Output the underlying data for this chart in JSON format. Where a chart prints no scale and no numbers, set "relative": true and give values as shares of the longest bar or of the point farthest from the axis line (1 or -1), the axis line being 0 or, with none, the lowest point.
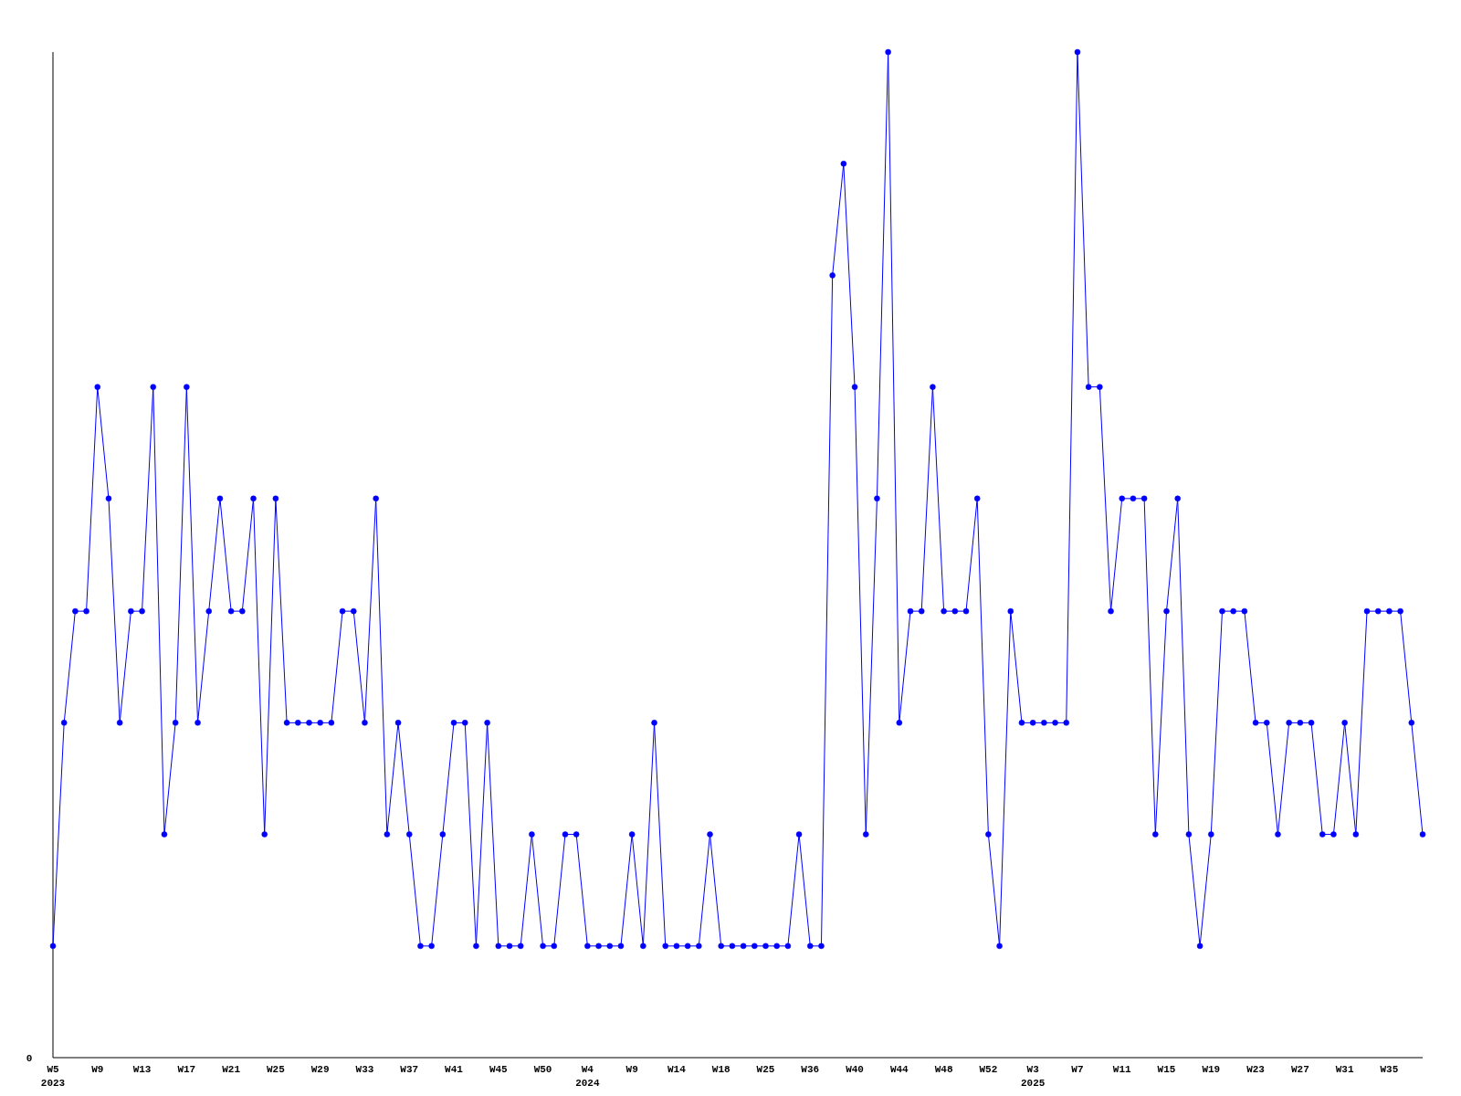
{
  "chart_data": {
    "type": "line",
    "relative": true,
    "marker": "circle",
    "annotations": [
      "0"
    ],
    "categories": [
      "W5\n2023",
      null,
      null,
      null,
      "W9",
      null,
      null,
      null,
      "W13",
      null,
      null,
      null,
      "W17",
      null,
      null,
      null,
      "W21",
      null,
      null,
      null,
      "W25",
      null,
      null,
      null,
      "W29",
      null,
      null,
      null,
      "W33",
      null,
      null,
      null,
      "W37",
      null,
      null,
      null,
      "W41",
      null,
      null,
      null,
      "W45",
      null,
      null,
      null,
      "W50",
      null,
      null,
      null,
      "W4\n2024",
      null,
      null,
      null,
      "W9",
      null,
      null,
      null,
      "W14",
      null,
      null,
      null,
      "W18",
      null,
      null,
      null,
      "W25",
      null,
      null,
      null,
      "W36",
      null,
      null,
      null,
      "W40",
      null,
      null,
      null,
      "W44",
      null,
      null,
      null,
      "W48",
      null,
      null,
      null,
      "W52",
      null,
      null,
      null,
      "W3\n2025",
      null,
      null,
      null,
      "W7",
      null,
      null,
      null,
      "W11",
      null,
      null,
      null,
      "W15",
      null,
      null,
      null,
      "W19",
      null,
      null,
      null,
      "W23",
      null,
      null,
      null,
      "W27",
      null,
      null,
      null,
      "W31",
      null,
      null,
      null,
      "W35",
      null,
      null,
      null
    ],
    "series": [
      {
        "color": "#0000ff",
        "values": [
          0.111,
          0.333,
          0.444,
          0.444,
          0.667,
          0.556,
          0.333,
          0.444,
          0.444,
          0.667,
          0.222,
          0.333,
          0.667,
          0.333,
          0.444,
          0.556,
          0.444,
          0.444,
          0.556,
          0.222,
          0.556,
          0.333,
          0.333,
          0.333,
          0.333,
          0.333,
          0.444,
          0.444,
          0.333,
          0.556,
          0.222,
          0.333,
          0.222,
          0.111,
          0.111,
          0.222,
          0.333,
          0.333,
          0.111,
          0.333,
          0.111,
          0.111,
          0.111,
          0.222,
          0.111,
          0.111,
          0.222,
          0.222,
          0.111,
          0.111,
          0.111,
          0.111,
          0.222,
          0.111,
          0.333,
          0.111,
          0.111,
          0.111,
          0.111,
          0.222,
          0.111,
          0.111,
          0.111,
          0.111,
          0.111,
          0.111,
          0.111,
          0.222,
          0.111,
          0.111,
          0.778,
          0.889,
          0.667,
          0.222,
          0.556,
          1,
          0.333,
          0.444,
          0.444,
          0.667,
          0.444,
          0.444,
          0.444,
          0.556,
          0.222,
          0.111,
          0.444,
          0.333,
          0.333,
          0.333,
          0.333,
          0.333,
          1,
          0.667,
          0.667,
          0.444,
          0.556,
          0.556,
          0.556,
          0.222,
          0.444,
          0.556,
          0.222,
          0.111,
          0.222,
          0.444,
          0.444,
          0.444,
          0.333,
          0.333,
          0.222,
          0.333,
          0.333,
          0.333,
          0.222,
          0.222,
          0.333,
          0.222,
          0.444,
          0.444,
          0.444,
          0.444,
          0.333,
          0.222
        ]
      }
    ]
  }
}
